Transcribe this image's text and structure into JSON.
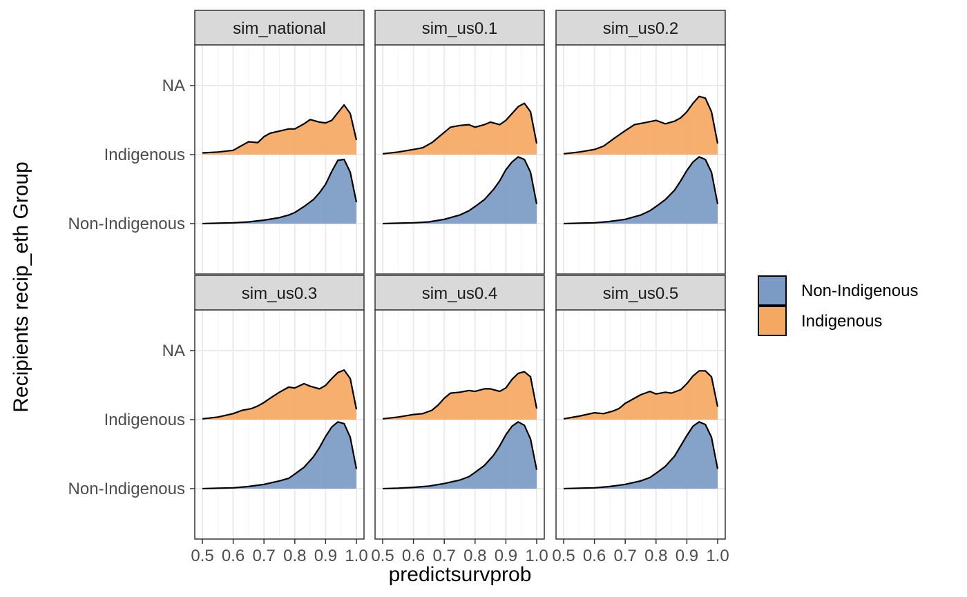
{
  "chart_data": {
    "type": "ridgeline-density",
    "xlabel": "predictsurvprob",
    "ylabel": "Recipients recip_eth Group",
    "xlim": [
      0.5,
      1.0
    ],
    "xticks": [
      0.5,
      0.6,
      0.7,
      0.8,
      0.9,
      1.0
    ],
    "xtick_labels": [
      "0.5",
      "0.6",
      "0.7",
      "0.8",
      "0.9",
      "1.0"
    ],
    "y_categories": [
      "Non-Indigenous",
      "Indigenous",
      "NA"
    ],
    "legend": {
      "position": "right",
      "entries": [
        {
          "label": "Non-Indigenous",
          "color": "#7b9bc4"
        },
        {
          "label": "Indigenous",
          "color": "#f5a862"
        }
      ]
    },
    "colors": {
      "non_indigenous": "#7b9bc4",
      "indigenous": "#f5a862",
      "overlap": "#7f7f85",
      "strip": "#d9d9d9",
      "grid": "#ebebeb"
    },
    "grid": true,
    "panels": [
      {
        "title": "sim_national",
        "series": [
          {
            "name": "Indigenous",
            "x": [
              0.5,
              0.55,
              0.6,
              0.62,
              0.65,
              0.68,
              0.7,
              0.72,
              0.75,
              0.78,
              0.8,
              0.83,
              0.85,
              0.88,
              0.9,
              0.92,
              0.94,
              0.96,
              0.98,
              1.0
            ],
            "y": [
              0.04,
              0.06,
              0.1,
              0.18,
              0.3,
              0.28,
              0.42,
              0.5,
              0.55,
              0.6,
              0.6,
              0.72,
              0.82,
              0.76,
              0.74,
              0.8,
              0.98,
              1.16,
              0.96,
              0.34
            ]
          },
          {
            "name": "Non-Indigenous",
            "x": [
              0.5,
              0.55,
              0.6,
              0.65,
              0.7,
              0.75,
              0.78,
              0.8,
              0.83,
              0.86,
              0.88,
              0.9,
              0.92,
              0.94,
              0.96,
              0.98,
              1.0
            ],
            "y": [
              0.0,
              0.01,
              0.02,
              0.04,
              0.08,
              0.14,
              0.2,
              0.26,
              0.4,
              0.56,
              0.72,
              0.92,
              1.22,
              1.48,
              1.5,
              1.2,
              0.5
            ]
          }
        ]
      },
      {
        "title": "sim_us0.1",
        "series": [
          {
            "name": "Indigenous",
            "x": [
              0.5,
              0.55,
              0.6,
              0.63,
              0.66,
              0.68,
              0.7,
              0.72,
              0.75,
              0.78,
              0.8,
              0.83,
              0.85,
              0.88,
              0.9,
              0.92,
              0.94,
              0.96,
              0.98,
              1.0
            ],
            "y": [
              0.02,
              0.06,
              0.12,
              0.16,
              0.28,
              0.4,
              0.52,
              0.64,
              0.68,
              0.7,
              0.64,
              0.7,
              0.76,
              0.7,
              0.8,
              0.96,
              1.12,
              1.2,
              1.0,
              0.26
            ]
          },
          {
            "name": "Non-Indigenous",
            "x": [
              0.5,
              0.55,
              0.6,
              0.65,
              0.7,
              0.75,
              0.78,
              0.8,
              0.83,
              0.86,
              0.88,
              0.9,
              0.92,
              0.94,
              0.96,
              0.98,
              1.0
            ],
            "y": [
              0.0,
              0.01,
              0.02,
              0.04,
              0.1,
              0.2,
              0.3,
              0.4,
              0.56,
              0.8,
              1.0,
              1.26,
              1.44,
              1.56,
              1.5,
              1.2,
              0.46
            ]
          }
        ]
      },
      {
        "title": "sim_us0.2",
        "series": [
          {
            "name": "Indigenous",
            "x": [
              0.5,
              0.55,
              0.6,
              0.63,
              0.66,
              0.7,
              0.73,
              0.76,
              0.8,
              0.83,
              0.86,
              0.88,
              0.9,
              0.92,
              0.94,
              0.96,
              0.98,
              1.0
            ],
            "y": [
              0.02,
              0.06,
              0.12,
              0.2,
              0.36,
              0.56,
              0.7,
              0.74,
              0.8,
              0.72,
              0.78,
              0.86,
              1.0,
              1.2,
              1.36,
              1.32,
              1.0,
              0.26
            ]
          },
          {
            "name": "Non-Indigenous",
            "x": [
              0.5,
              0.55,
              0.6,
              0.65,
              0.7,
              0.75,
              0.78,
              0.8,
              0.83,
              0.86,
              0.88,
              0.9,
              0.92,
              0.94,
              0.96,
              0.98,
              1.0
            ],
            "y": [
              0.0,
              0.01,
              0.02,
              0.05,
              0.1,
              0.2,
              0.3,
              0.4,
              0.56,
              0.78,
              1.0,
              1.24,
              1.44,
              1.56,
              1.5,
              1.2,
              0.46
            ]
          }
        ]
      },
      {
        "title": "sim_us0.3",
        "series": [
          {
            "name": "Indigenous",
            "x": [
              0.5,
              0.55,
              0.6,
              0.63,
              0.66,
              0.68,
              0.7,
              0.72,
              0.75,
              0.78,
              0.8,
              0.83,
              0.85,
              0.88,
              0.9,
              0.92,
              0.94,
              0.96,
              0.98,
              1.0
            ],
            "y": [
              0.02,
              0.06,
              0.14,
              0.22,
              0.26,
              0.32,
              0.4,
              0.5,
              0.64,
              0.76,
              0.74,
              0.84,
              0.78,
              0.72,
              0.8,
              0.96,
              1.1,
              1.16,
              0.96,
              0.24
            ]
          },
          {
            "name": "Non-Indigenous",
            "x": [
              0.5,
              0.55,
              0.6,
              0.65,
              0.7,
              0.75,
              0.78,
              0.8,
              0.83,
              0.86,
              0.88,
              0.9,
              0.92,
              0.94,
              0.96,
              0.98,
              1.0
            ],
            "y": [
              0.0,
              0.01,
              0.02,
              0.05,
              0.1,
              0.18,
              0.24,
              0.34,
              0.5,
              0.74,
              0.96,
              1.22,
              1.44,
              1.56,
              1.52,
              1.2,
              0.46
            ]
          }
        ]
      },
      {
        "title": "sim_us0.4",
        "series": [
          {
            "name": "Indigenous",
            "x": [
              0.5,
              0.55,
              0.6,
              0.63,
              0.66,
              0.68,
              0.7,
              0.72,
              0.75,
              0.78,
              0.8,
              0.83,
              0.85,
              0.88,
              0.9,
              0.92,
              0.94,
              0.96,
              0.98,
              1.0
            ],
            "y": [
              0.02,
              0.06,
              0.12,
              0.14,
              0.22,
              0.34,
              0.5,
              0.62,
              0.64,
              0.68,
              0.66,
              0.72,
              0.72,
              0.66,
              0.74,
              0.94,
              1.08,
              1.12,
              1.0,
              0.26
            ]
          },
          {
            "name": "Non-Indigenous",
            "x": [
              0.5,
              0.55,
              0.6,
              0.65,
              0.7,
              0.75,
              0.78,
              0.8,
              0.83,
              0.86,
              0.88,
              0.9,
              0.92,
              0.94,
              0.96,
              0.98,
              1.0
            ],
            "y": [
              0.0,
              0.01,
              0.03,
              0.06,
              0.12,
              0.2,
              0.28,
              0.38,
              0.54,
              0.78,
              1.0,
              1.26,
              1.46,
              1.56,
              1.48,
              1.16,
              0.44
            ]
          }
        ]
      },
      {
        "title": "sim_us0.5",
        "series": [
          {
            "name": "Indigenous",
            "x": [
              0.5,
              0.55,
              0.6,
              0.63,
              0.66,
              0.68,
              0.7,
              0.72,
              0.75,
              0.78,
              0.8,
              0.83,
              0.85,
              0.88,
              0.9,
              0.92,
              0.94,
              0.96,
              0.98,
              1.0
            ],
            "y": [
              0.02,
              0.08,
              0.16,
              0.14,
              0.2,
              0.26,
              0.38,
              0.46,
              0.58,
              0.66,
              0.6,
              0.64,
              0.62,
              0.7,
              0.84,
              1.02,
              1.14,
              1.14,
              1.0,
              0.3
            ]
          },
          {
            "name": "Non-Indigenous",
            "x": [
              0.5,
              0.55,
              0.6,
              0.65,
              0.7,
              0.75,
              0.78,
              0.8,
              0.83,
              0.86,
              0.88,
              0.9,
              0.92,
              0.94,
              0.96,
              0.98,
              1.0
            ],
            "y": [
              0.0,
              0.01,
              0.02,
              0.05,
              0.1,
              0.18,
              0.26,
              0.36,
              0.52,
              0.76,
              1.0,
              1.24,
              1.46,
              1.56,
              1.5,
              1.2,
              0.46
            ]
          }
        ]
      }
    ]
  }
}
